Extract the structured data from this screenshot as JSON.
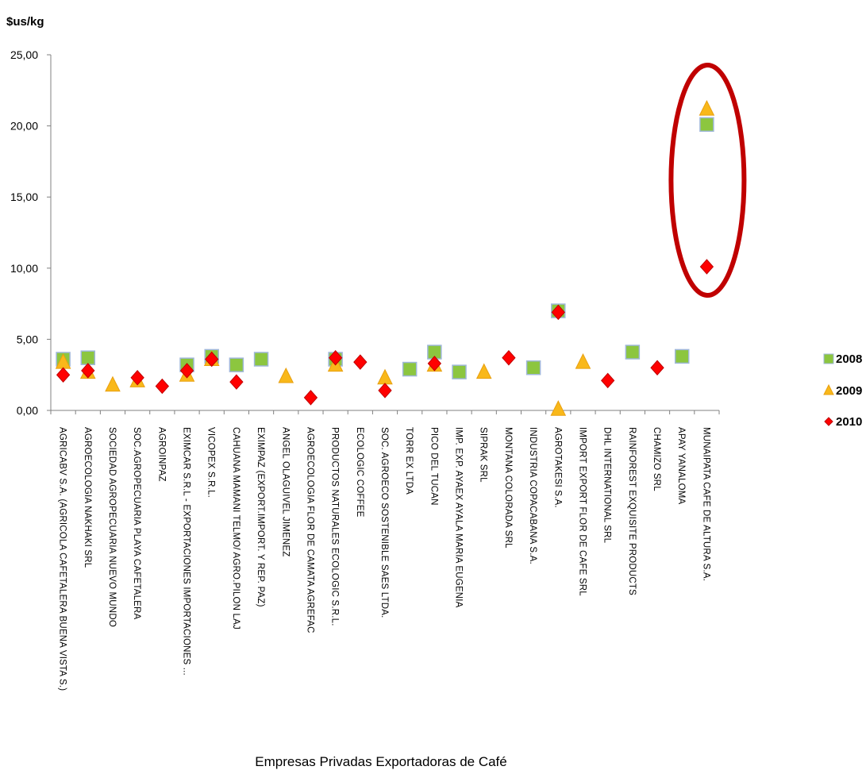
{
  "chart_data": {
    "type": "scatter",
    "y_unit_label": "$us/kg",
    "xlabel": "Empresas Privadas  Exportadoras de Café",
    "ylabel": "",
    "ylim": [
      0,
      25
    ],
    "yticks": [
      "0,00",
      "5,00",
      "10,00",
      "15,00",
      "20,00",
      "25,00"
    ],
    "ytick_values": [
      0,
      5,
      10,
      15,
      20,
      25
    ],
    "categories": [
      "AGRICABV S.A. (AGRICOLA  CAFETALERA BUENA VISTA S.)",
      "AGROECOLOGIA NAKHAKI SRL",
      "SOCIEDAD AGROPECUARIA  NUEVO MUNDO",
      "SOC.AGROPECUARIA  PLAYA CAFETALERA",
      "AGROINPAZ",
      "EXIMCAR  S.R.L  - EXPORTACIONES  IMPORTACIONES ...",
      "VICOPEX S.R.L.",
      "CAHUANA  MAMANI TELMO/ AGRO.PILON  LAJ",
      "EXIMPAZ (EXPORT.IMPORT.  Y REP. PAZ)",
      "ANGEL OLAGUIVEL  JIMENEZ",
      "AGROECOLOGIA FLOR DE CAMATA AGREFAC",
      "PRODUCTOS NATURALES ECOLOGIC  S.R.L.",
      "ECOLOGIC COFFEE",
      "SOC. AGROECO SOSTENIBLE SAES LTDA.",
      "TORR EX LTDA",
      "PICO DEL TUCAN",
      "IMP. EXP. AYAEX AYALA MARIA EUGENIA",
      "SIPRAK SRL",
      "MONTANA COLORADA  SRL",
      "INDUSTRIA  COPACABANA  S.A.",
      "AGROTAKESI S.A.",
      "IMPORT EXPORT FLOR DE CAFE SRL",
      "DHL INTERNATIONAL  SRL",
      "RAINFOREST EXQUISITE PRODUCTS",
      "CHAMIZO SRL",
      "APAY YANALOMA",
      "MUNAIPATA CAFE DE ALTURA S.A."
    ],
    "series": [
      {
        "name": "2008",
        "marker": "square",
        "color": "#8cc63f",
        "stroke": "#9fb7d9",
        "values": [
          3.6,
          3.7,
          null,
          null,
          null,
          3.2,
          3.8,
          3.2,
          3.6,
          null,
          null,
          3.6,
          null,
          null,
          2.9,
          4.1,
          2.7,
          null,
          null,
          3.0,
          7.0,
          null,
          null,
          4.1,
          null,
          3.8,
          20.1
        ]
      },
      {
        "name": "2009",
        "marker": "triangle",
        "color": "#f9b81a",
        "stroke": "#e8a010",
        "values": [
          3.4,
          2.7,
          1.8,
          2.1,
          null,
          2.5,
          3.6,
          null,
          null,
          2.4,
          null,
          3.2,
          null,
          2.3,
          null,
          3.2,
          null,
          2.7,
          null,
          null,
          0.1,
          3.4,
          null,
          null,
          null,
          null,
          21.2
        ]
      },
      {
        "name": "2010",
        "marker": "diamond",
        "color": "#ff0000",
        "stroke": "#c00000",
        "values": [
          2.5,
          2.8,
          null,
          2.3,
          1.7,
          2.8,
          3.6,
          2.0,
          null,
          null,
          0.9,
          3.7,
          3.4,
          1.4,
          null,
          3.3,
          null,
          null,
          3.7,
          null,
          6.9,
          null,
          2.1,
          null,
          3.0,
          null,
          10.1
        ]
      }
    ],
    "highlight": {
      "shape": "ellipse",
      "category_index": 26,
      "color": "#c00000"
    },
    "grid": false,
    "legend_placement": "right"
  }
}
